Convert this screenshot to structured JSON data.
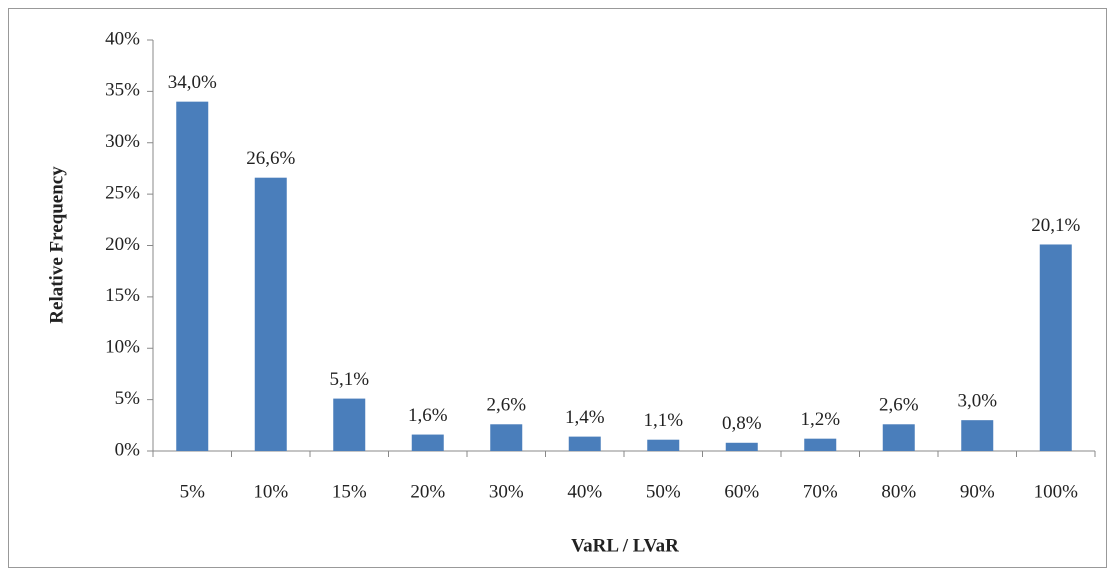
{
  "chart_data": {
    "type": "bar",
    "x_label": "VaRL / LVaR",
    "y_label": "Relative Frequency",
    "categories": [
      "5%",
      "10%",
      "15%",
      "20%",
      "30%",
      "40%",
      "50%",
      "60%",
      "70%",
      "80%",
      "90%",
      "100%"
    ],
    "values": [
      34.0,
      26.6,
      5.1,
      1.6,
      2.6,
      1.4,
      1.1,
      0.8,
      1.2,
      2.6,
      3.0,
      20.1
    ],
    "value_labels": [
      "34,0%",
      "26,6%",
      "5,1%",
      "1,6%",
      "2,6%",
      "1,4%",
      "1,1%",
      "0,8%",
      "1,2%",
      "2,6%",
      "3,0%",
      "20,1%"
    ],
    "color": "#4a7ebb",
    "ylim": [
      0,
      40
    ],
    "yticks": [
      {
        "value": 0,
        "label": "0%"
      },
      {
        "value": 5,
        "label": "5%"
      },
      {
        "value": 10,
        "label": "10%"
      },
      {
        "value": 15,
        "label": "15%"
      },
      {
        "value": 20,
        "label": "20%"
      },
      {
        "value": 25,
        "label": "25%"
      },
      {
        "value": 30,
        "label": "30%"
      },
      {
        "value": 35,
        "label": "35%"
      },
      {
        "value": 40,
        "label": "40%"
      }
    ],
    "grid": false
  }
}
